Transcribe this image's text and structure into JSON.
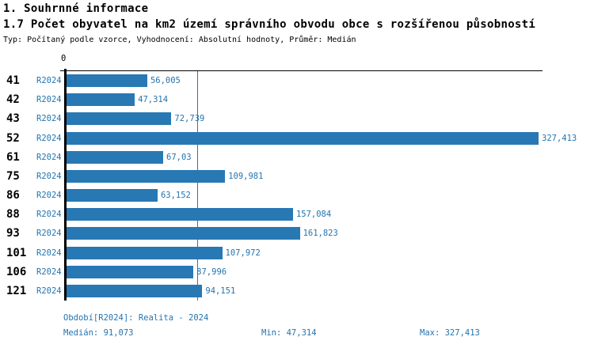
{
  "header": {
    "section_title": "1. Souhrnné informace",
    "chart_title": "1.7 Počet obyvatel na km2 území správního obvodu obce s rozšířenou působností",
    "subtitle": "Typ: Počítaný podle vzorce, Vyhodnocení: Absolutní hodnoty, Průměr: Medián"
  },
  "chart_data": {
    "type": "bar",
    "orientation": "horizontal",
    "title": "1.7 Počet obyvatel na km2 území správního obvodu obce s rozšířenou působností",
    "categories": [
      "41",
      "42",
      "43",
      "52",
      "61",
      "75",
      "86",
      "88",
      "93",
      "101",
      "106",
      "121"
    ],
    "series": [
      {
        "name": "R2024",
        "values": [
          56.005,
          47.314,
          72.739,
          327.413,
          67.03,
          109.981,
          63.152,
          157.084,
          161.823,
          107.972,
          87.996,
          94.151
        ]
      }
    ],
    "value_labels": [
      "56,005",
      "47,314",
      "72,739",
      "327,413",
      "67,03",
      "109,981",
      "63,152",
      "157,084",
      "161,823",
      "107,972",
      "87,996",
      "94,151"
    ],
    "series_row_label": "R2024",
    "zero_tick_label": "0",
    "xlim": [
      0,
      327.413
    ],
    "median_value": 91.073,
    "grid": "off",
    "legend": "none",
    "annotations": [
      "median reference line at 91,073"
    ]
  },
  "footer": {
    "period_line": "Období[R2024]: Realita - 2024",
    "median_label": "Medián: 91,073",
    "min_label": "Min: 47,314",
    "max_label": "Max: 327,413"
  },
  "colors": {
    "bar": "#2878b4",
    "accent_text": "#2474ae",
    "median_line": "#2878b4",
    "axis": "#000000",
    "background": "#ffffff"
  }
}
